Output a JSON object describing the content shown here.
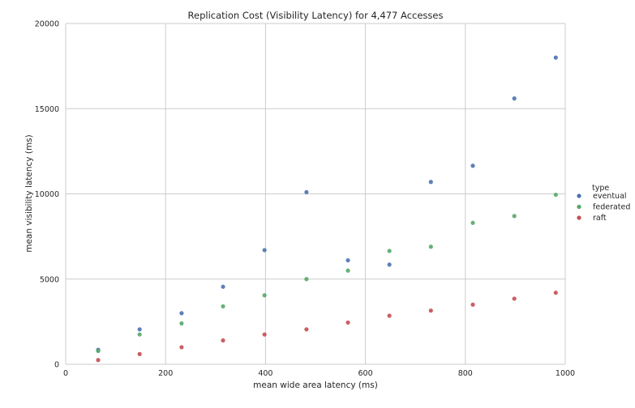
{
  "chart_data": {
    "type": "scatter",
    "title": "Replication Cost (Visibility Latency) for 4,477 Accesses",
    "xlabel": "mean wide area latency (ms)",
    "ylabel": "mean visibility latency (ms)",
    "xlim": [
      0,
      1000
    ],
    "ylim": [
      0,
      20000
    ],
    "xticks": [
      0,
      200,
      400,
      600,
      800,
      1000
    ],
    "yticks": [
      0,
      5000,
      10000,
      15000,
      20000
    ],
    "xtick_labels": [
      "0",
      "200",
      "400",
      "600",
      "800",
      "1000"
    ],
    "ytick_labels": [
      "0",
      "5000",
      "10000",
      "15000",
      "20000"
    ],
    "grid": true,
    "legend": {
      "title": "type",
      "placement": "right"
    },
    "series": [
      {
        "name": "eventual",
        "color": "#4c72b0",
        "x": [
          65,
          148,
          232,
          315,
          398,
          482,
          565,
          648,
          731,
          815,
          898,
          981
        ],
        "y": [
          850,
          2050,
          3000,
          4550,
          6700,
          10100,
          6100,
          5850,
          10700,
          11650,
          15600,
          18000
        ]
      },
      {
        "name": "federated",
        "color": "#55a868",
        "x": [
          65,
          148,
          232,
          315,
          398,
          482,
          565,
          648,
          731,
          815,
          898,
          981
        ],
        "y": [
          780,
          1750,
          2400,
          3400,
          4050,
          5000,
          5500,
          6650,
          6900,
          8300,
          8700,
          9950
        ]
      },
      {
        "name": "raft",
        "color": "#c44e52",
        "x": [
          65,
          148,
          232,
          315,
          398,
          482,
          565,
          648,
          731,
          815,
          898,
          981
        ],
        "y": [
          250,
          600,
          1000,
          1400,
          1750,
          2050,
          2450,
          2850,
          3150,
          3500,
          3850,
          4200
        ]
      }
    ]
  }
}
